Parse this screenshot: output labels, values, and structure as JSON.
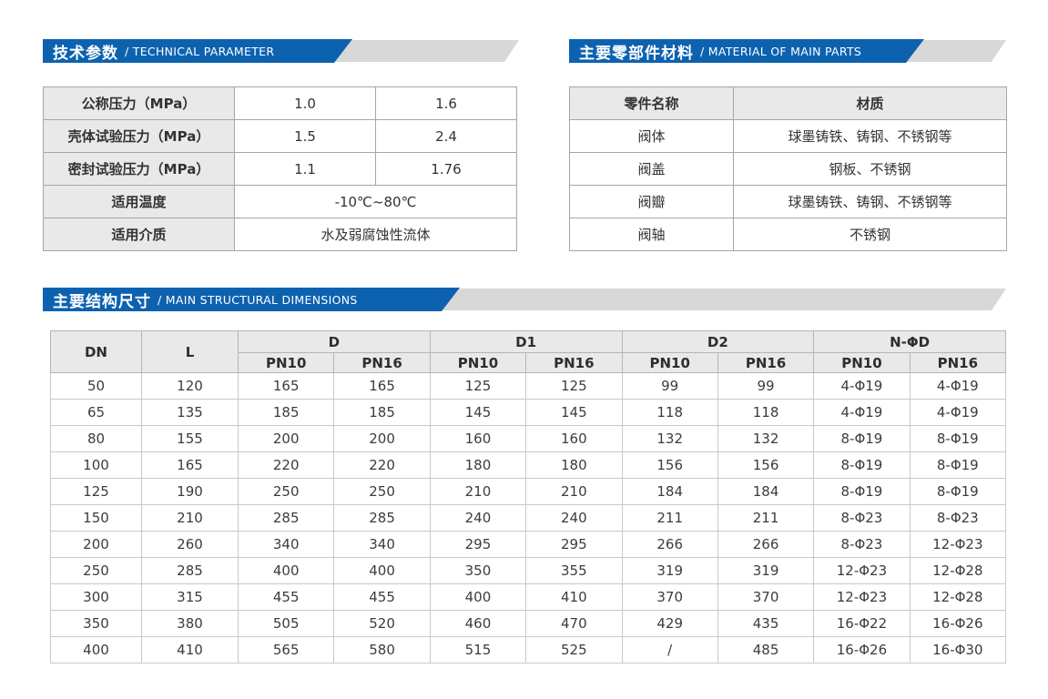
{
  "colors": {
    "banner_blue": "#0d62b0",
    "banner_gray": "#d8d8d8",
    "table_header_bg": "#e9e9e9",
    "text": "#333333"
  },
  "technical": {
    "title_zh": "技术参数",
    "title_en": "/ TECHNICAL PARAMETER",
    "rows": [
      [
        {
          "t": "公称压力（MPa）",
          "h": 1
        },
        {
          "t": "1.0"
        },
        {
          "t": "1.6"
        }
      ],
      [
        {
          "t": "壳体试验压力（MPa）",
          "h": 1
        },
        {
          "t": "1.5"
        },
        {
          "t": "2.4"
        }
      ],
      [
        {
          "t": "密封试验压力（MPa）",
          "h": 1
        },
        {
          "t": "1.1"
        },
        {
          "t": "1.76"
        }
      ],
      [
        {
          "t": "适用温度",
          "h": 1
        },
        {
          "t": "-10℃~80℃",
          "cs": 2
        }
      ],
      [
        {
          "t": "适用介质",
          "h": 1
        },
        {
          "t": "水及弱腐蚀性流体",
          "cs": 2
        }
      ]
    ]
  },
  "materials": {
    "title_zh": "主要零部件材料",
    "title_en": "/ MATERIAL OF MAIN PARTS",
    "rows": [
      [
        {
          "t": "零件名称",
          "h": 1
        },
        {
          "t": "材质",
          "h": 1
        }
      ],
      [
        {
          "t": "阀体"
        },
        {
          "t": "球墨铸铁、铸钢、不锈钢等"
        }
      ],
      [
        {
          "t": "阀盖"
        },
        {
          "t": "钢板、不锈钢"
        }
      ],
      [
        {
          "t": "阀瓣"
        },
        {
          "t": "球墨铸铁、铸钢、不锈钢等"
        }
      ],
      [
        {
          "t": "阀轴"
        },
        {
          "t": "不锈钢"
        }
      ]
    ]
  },
  "dimensions": {
    "title_zh": "主要结构尺寸",
    "title_en": "/ MAIN STRUCTURAL DIMENSIONS",
    "headers": {
      "dn": "DN",
      "l": "L",
      "groups": [
        "D",
        "D1",
        "D2",
        "N-ΦD"
      ],
      "pn10": "PN10",
      "pn16": "PN16"
    },
    "rows": [
      [
        "50",
        "120",
        "165",
        "165",
        "125",
        "125",
        "99",
        "99",
        "4-Φ19",
        "4-Φ19"
      ],
      [
        "65",
        "135",
        "185",
        "185",
        "145",
        "145",
        "118",
        "118",
        "4-Φ19",
        "4-Φ19"
      ],
      [
        "80",
        "155",
        "200",
        "200",
        "160",
        "160",
        "132",
        "132",
        "8-Φ19",
        "8-Φ19"
      ],
      [
        "100",
        "165",
        "220",
        "220",
        "180",
        "180",
        "156",
        "156",
        "8-Φ19",
        "8-Φ19"
      ],
      [
        "125",
        "190",
        "250",
        "250",
        "210",
        "210",
        "184",
        "184",
        "8-Φ19",
        "8-Φ19"
      ],
      [
        "150",
        "210",
        "285",
        "285",
        "240",
        "240",
        "211",
        "211",
        "8-Φ23",
        "8-Φ23"
      ],
      [
        "200",
        "260",
        "340",
        "340",
        "295",
        "295",
        "266",
        "266",
        "8-Φ23",
        "12-Φ23"
      ],
      [
        "250",
        "285",
        "400",
        "400",
        "350",
        "355",
        "319",
        "319",
        "12-Φ23",
        "12-Φ28"
      ],
      [
        "300",
        "315",
        "455",
        "455",
        "400",
        "410",
        "370",
        "370",
        "12-Φ23",
        "12-Φ28"
      ],
      [
        "350",
        "380",
        "505",
        "520",
        "460",
        "470",
        "429",
        "435",
        "16-Φ22",
        "16-Φ26"
      ],
      [
        "400",
        "410",
        "565",
        "580",
        "515",
        "525",
        "/",
        "485",
        "16-Φ26",
        "16-Φ30"
      ]
    ]
  }
}
